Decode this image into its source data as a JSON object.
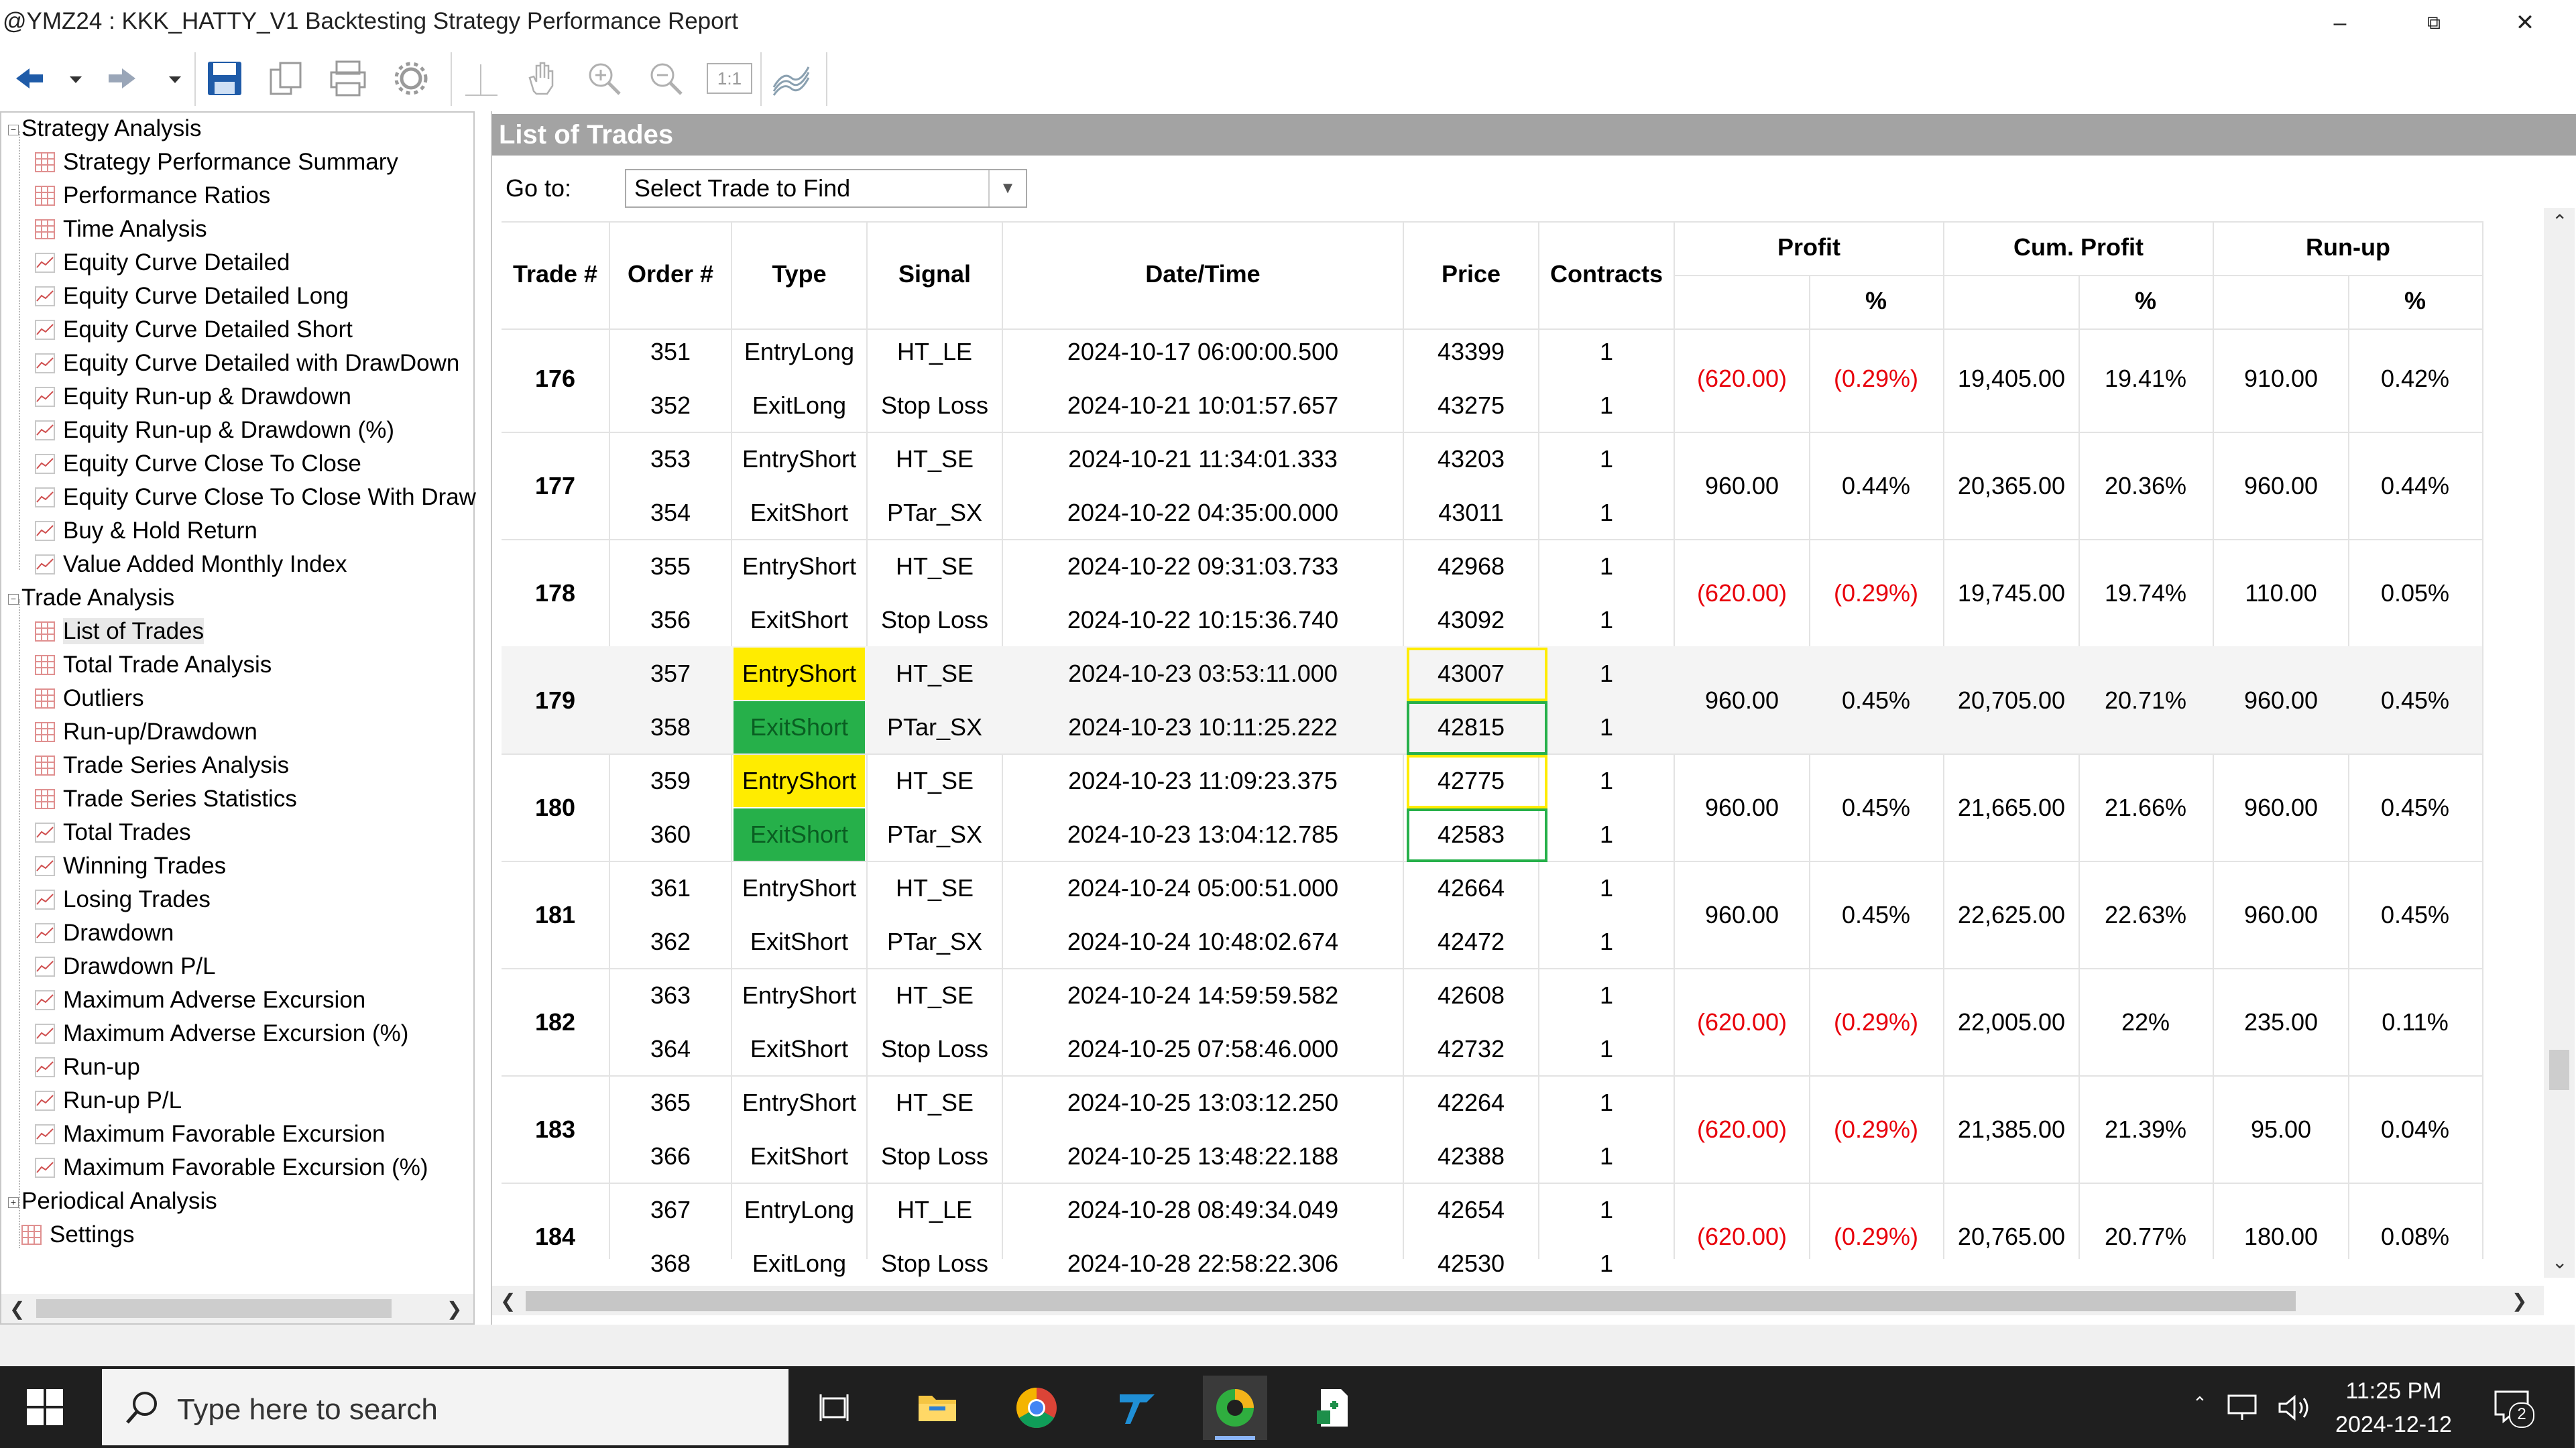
{
  "window": {
    "title": "@YMZ24 : KKK_HATTY_V1 Backtesting Strategy Performance Report",
    "minimize": "–",
    "restore": "⧉",
    "close": "✕"
  },
  "toolbar": {
    "icons": [
      "back-icon",
      "dropdown-icon",
      "forward-icon",
      "dropdown-icon",
      "save-icon",
      "copy-icon",
      "print-icon",
      "settings-icon",
      "crosshair-icon",
      "pan-icon",
      "zoom-in-icon",
      "zoom-out-icon",
      "zoom-1-1-icon",
      "chart-style-icon"
    ],
    "zoom_1to1": "1:1"
  },
  "tree": {
    "groups": [
      {
        "label": "Strategy Analysis",
        "expander": "−"
      },
      {
        "label": "Trade Analysis",
        "expander": "−"
      },
      {
        "label": "Periodical Analysis",
        "expander": "+"
      }
    ],
    "strategy_items": [
      {
        "label": "Strategy Performance Summary",
        "icon": "table-icon"
      },
      {
        "label": "Performance Ratios",
        "icon": "table-icon"
      },
      {
        "label": "Time Analysis",
        "icon": "table-icon"
      },
      {
        "label": "Equity Curve Detailed",
        "icon": "chart-icon"
      },
      {
        "label": "Equity Curve Detailed Long",
        "icon": "chart-icon"
      },
      {
        "label": "Equity Curve Detailed Short",
        "icon": "chart-icon"
      },
      {
        "label": "Equity Curve Detailed with DrawDown",
        "icon": "chart-icon"
      },
      {
        "label": "Equity Run-up & Drawdown",
        "icon": "chart-icon"
      },
      {
        "label": "Equity Run-up & Drawdown (%)",
        "icon": "chart-icon"
      },
      {
        "label": "Equity Curve Close To Close",
        "icon": "chart-icon"
      },
      {
        "label": "Equity Curve Close To Close With Draw",
        "icon": "chart-icon"
      },
      {
        "label": "Buy & Hold Return",
        "icon": "chart-icon"
      },
      {
        "label": "Value Added Monthly Index",
        "icon": "chart-icon"
      }
    ],
    "trade_items": [
      {
        "label": "List of Trades",
        "icon": "table-icon",
        "selected": true
      },
      {
        "label": "Total Trade Analysis",
        "icon": "table-icon"
      },
      {
        "label": "Outliers",
        "icon": "table-icon"
      },
      {
        "label": "Run-up/Drawdown",
        "icon": "table-icon"
      },
      {
        "label": "Trade Series Analysis",
        "icon": "table-icon"
      },
      {
        "label": "Trade Series Statistics",
        "icon": "table-icon"
      },
      {
        "label": "Total Trades",
        "icon": "chart-icon"
      },
      {
        "label": "Winning Trades",
        "icon": "chart-icon"
      },
      {
        "label": "Losing Trades",
        "icon": "chart-icon"
      },
      {
        "label": "Drawdown",
        "icon": "chart-icon"
      },
      {
        "label": "Drawdown P/L",
        "icon": "chart-icon"
      },
      {
        "label": "Maximum Adverse Excursion",
        "icon": "chart-icon"
      },
      {
        "label": "Maximum Adverse Excursion (%)",
        "icon": "chart-icon"
      },
      {
        "label": "Run-up",
        "icon": "chart-icon"
      },
      {
        "label": "Run-up P/L",
        "icon": "chart-icon"
      },
      {
        "label": "Maximum Favorable Excursion",
        "icon": "chart-icon"
      },
      {
        "label": "Maximum Favorable Excursion (%)",
        "icon": "chart-icon"
      }
    ],
    "settings_item": {
      "label": "Settings",
      "icon": "table-icon"
    }
  },
  "main": {
    "header": "List of Trades",
    "goto_label": "Go to:",
    "goto_value": "Select Trade to Find",
    "columns": {
      "trade": "Trade #",
      "order": "Order #",
      "type": "Type",
      "signal": "Signal",
      "datetime": "Date/Time",
      "price": "Price",
      "contracts": "Contracts",
      "profit": "Profit",
      "profit_pct": "%",
      "cum_profit": "Cum. Profit",
      "cum_profit_pct": "%",
      "runup": "Run-up",
      "runup_pct": "%"
    },
    "trades": [
      {
        "trade": "176",
        "profit": "(620.00)",
        "profit_pct": "(0.29%)",
        "cum": "19,405.00",
        "cum_pct": "19.41%",
        "runup": "910.00",
        "runup_pct": "0.42%",
        "loss": true,
        "orders": [
          {
            "order": "351",
            "type": "EntryLong",
            "signal": "HT_LE",
            "datetime": "2024-10-17 06:00:00.500",
            "price": "43399",
            "contracts": "1"
          },
          {
            "order": "352",
            "type": "ExitLong",
            "signal": "Stop Loss",
            "datetime": "2024-10-21 10:01:57.657",
            "price": "43275",
            "contracts": "1"
          }
        ]
      },
      {
        "trade": "177",
        "profit": "960.00",
        "profit_pct": "0.44%",
        "cum": "20,365.00",
        "cum_pct": "20.36%",
        "runup": "960.00",
        "runup_pct": "0.44%",
        "loss": false,
        "orders": [
          {
            "order": "353",
            "type": "EntryShort",
            "signal": "HT_SE",
            "datetime": "2024-10-21 11:34:01.333",
            "price": "43203",
            "contracts": "1"
          },
          {
            "order": "354",
            "type": "ExitShort",
            "signal": "PTar_SX",
            "datetime": "2024-10-22 04:35:00.000",
            "price": "43011",
            "contracts": "1"
          }
        ]
      },
      {
        "trade": "178",
        "profit": "(620.00)",
        "profit_pct": "(0.29%)",
        "cum": "19,745.00",
        "cum_pct": "19.74%",
        "runup": "110.00",
        "runup_pct": "0.05%",
        "loss": true,
        "orders": [
          {
            "order": "355",
            "type": "EntryShort",
            "signal": "HT_SE",
            "datetime": "2024-10-22 09:31:03.733",
            "price": "42968",
            "contracts": "1"
          },
          {
            "order": "356",
            "type": "ExitShort",
            "signal": "Stop Loss",
            "datetime": "2024-10-22 10:15:36.740",
            "price": "43092",
            "contracts": "1"
          }
        ]
      },
      {
        "trade": "179",
        "profit": "960.00",
        "profit_pct": "0.45%",
        "cum": "20,705.00",
        "cum_pct": "20.71%",
        "runup": "960.00",
        "runup_pct": "0.45%",
        "loss": false,
        "orders": [
          {
            "order": "357",
            "type": "EntryShort",
            "signal": "HT_SE",
            "datetime": "2024-10-23 03:53:11.000",
            "price": "43007",
            "contracts": "1"
          },
          {
            "order": "358",
            "type": "ExitShort",
            "signal": "PTar_SX",
            "datetime": "2024-10-23 10:11:25.222",
            "price": "42815",
            "contracts": "1"
          }
        ]
      },
      {
        "trade": "180",
        "profit": "960.00",
        "profit_pct": "0.45%",
        "cum": "21,665.00",
        "cum_pct": "21.66%",
        "runup": "960.00",
        "runup_pct": "0.45%",
        "loss": false,
        "orders": [
          {
            "order": "359",
            "type": "EntryShort",
            "signal": "HT_SE",
            "datetime": "2024-10-23 11:09:23.375",
            "price": "42775",
            "contracts": "1"
          },
          {
            "order": "360",
            "type": "ExitShort",
            "signal": "PTar_SX",
            "datetime": "2024-10-23 13:04:12.785",
            "price": "42583",
            "contracts": "1"
          }
        ]
      },
      {
        "trade": "181",
        "profit": "960.00",
        "profit_pct": "0.45%",
        "cum": "22,625.00",
        "cum_pct": "22.63%",
        "runup": "960.00",
        "runup_pct": "0.45%",
        "loss": false,
        "orders": [
          {
            "order": "361",
            "type": "EntryShort",
            "signal": "HT_SE",
            "datetime": "2024-10-24 05:00:51.000",
            "price": "42664",
            "contracts": "1"
          },
          {
            "order": "362",
            "type": "ExitShort",
            "signal": "PTar_SX",
            "datetime": "2024-10-24 10:48:02.674",
            "price": "42472",
            "contracts": "1"
          }
        ]
      },
      {
        "trade": "182",
        "profit": "(620.00)",
        "profit_pct": "(0.29%)",
        "cum": "22,005.00",
        "cum_pct": "22%",
        "runup": "235.00",
        "runup_pct": "0.11%",
        "loss": true,
        "orders": [
          {
            "order": "363",
            "type": "EntryShort",
            "signal": "HT_SE",
            "datetime": "2024-10-24 14:59:59.582",
            "price": "42608",
            "contracts": "1"
          },
          {
            "order": "364",
            "type": "ExitShort",
            "signal": "Stop Loss",
            "datetime": "2024-10-25 07:58:46.000",
            "price": "42732",
            "contracts": "1"
          }
        ]
      },
      {
        "trade": "183",
        "profit": "(620.00)",
        "profit_pct": "(0.29%)",
        "cum": "21,385.00",
        "cum_pct": "21.39%",
        "runup": "95.00",
        "runup_pct": "0.04%",
        "loss": true,
        "orders": [
          {
            "order": "365",
            "type": "EntryShort",
            "signal": "HT_SE",
            "datetime": "2024-10-25 13:03:12.250",
            "price": "42264",
            "contracts": "1"
          },
          {
            "order": "366",
            "type": "ExitShort",
            "signal": "Stop Loss",
            "datetime": "2024-10-25 13:48:22.188",
            "price": "42388",
            "contracts": "1"
          }
        ]
      },
      {
        "trade": "184",
        "profit": "(620.00)",
        "profit_pct": "(0.29%)",
        "cum": "20,765.00",
        "cum_pct": "20.77%",
        "runup": "180.00",
        "runup_pct": "0.08%",
        "loss": true,
        "orders": [
          {
            "order": "367",
            "type": "EntryLong",
            "signal": "HT_LE",
            "datetime": "2024-10-28 08:49:34.049",
            "price": "42654",
            "contracts": "1"
          },
          {
            "order": "368",
            "type": "ExitLong",
            "signal": "Stop Loss",
            "datetime": "2024-10-28 22:58:22.306",
            "price": "42530",
            "contracts": "1"
          }
        ]
      }
    ],
    "highlighted_trades": [
      "179",
      "180"
    ],
    "highlight_colors": {
      "entry": "#ffec00",
      "exit": "#26b04a",
      "loss_text": "#e8000b"
    }
  },
  "taskbar": {
    "search_placeholder": "Type here to search",
    "apps": [
      "task-view-icon",
      "file-explorer-icon",
      "chrome-icon",
      "tradestation-icon",
      "multicharts-icon",
      "excel-icon"
    ],
    "time": "11:25 PM",
    "date": "2024-12-12",
    "notification_count": "2"
  }
}
